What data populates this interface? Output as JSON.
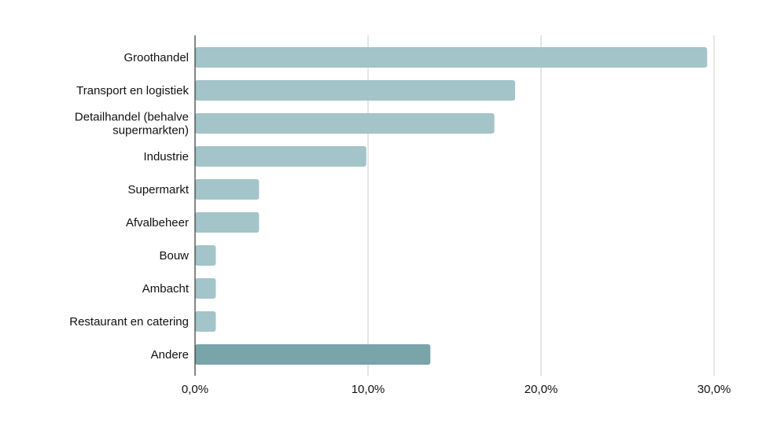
{
  "chart_data": {
    "type": "bar",
    "orientation": "horizontal",
    "categories": [
      [
        "Groothandel"
      ],
      [
        "Transport en logistiek"
      ],
      [
        "Detailhandel (behalve",
        "supermarkten)"
      ],
      [
        "Industrie"
      ],
      [
        "Supermarkt"
      ],
      [
        "Afvalbeheer"
      ],
      [
        "Bouw"
      ],
      [
        "Ambacht"
      ],
      [
        "Restaurant en catering"
      ],
      [
        "Andere"
      ]
    ],
    "values": [
      29.6,
      18.5,
      17.3,
      9.9,
      3.7,
      3.7,
      1.2,
      1.2,
      1.2,
      13.6
    ],
    "xlim": [
      0,
      30
    ],
    "xticks": [
      0,
      10,
      20,
      30
    ],
    "xtick_labels": [
      "0,0%",
      "10,0%",
      "20,0%",
      "30,0%"
    ],
    "grid": true,
    "title": "",
    "xlabel": "",
    "ylabel": "",
    "colors": {
      "bar": "#a3c4c8",
      "highlight_bar": "#78a4aa",
      "grid": "#cccccc",
      "axis": "#333333"
    },
    "highlight_index": 9
  }
}
